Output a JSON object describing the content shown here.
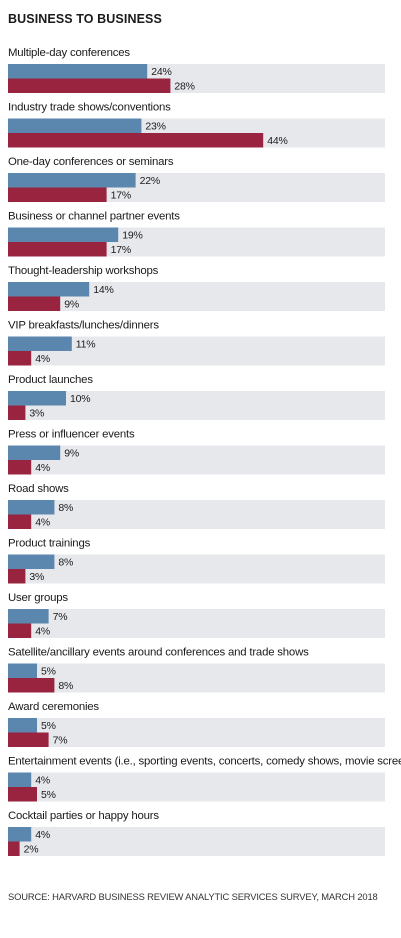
{
  "title": "BUSINESS TO BUSINESS",
  "source": "SOURCE: HARVARD BUSINESS REVIEW ANALYTIC SERVICES SURVEY, MARCH 2018",
  "colors": {
    "series1": "#5b86ad",
    "series2": "#98243f",
    "track": "#e6e8ec"
  },
  "chart_data": {
    "type": "bar",
    "orientation": "horizontal",
    "xlim": [
      0,
      50
    ],
    "categories": [
      "Multiple-day conferences",
      "Industry trade shows/conventions",
      "One-day conferences or seminars",
      "Business or channel partner events",
      "Thought-leadership workshops",
      "VIP breakfasts/lunches/dinners",
      "Product launches",
      "Press or influencer events",
      "Road shows",
      "Product trainings",
      "User groups",
      "Satellite/ancillary events around conferences and trade shows",
      "Award ceremonies",
      "Entertainment events (i.e., sporting events, concerts, comedy shows, movie screenings)",
      "Cocktail parties or happy hours"
    ],
    "series": [
      {
        "values": [
          24,
          23,
          22,
          19,
          14,
          11,
          10,
          9,
          8,
          8,
          7,
          5,
          5,
          4,
          4
        ],
        "labels": [
          "24%",
          "23%",
          "22%",
          "19%",
          "14%",
          "11%",
          "10%",
          "9%",
          "8%",
          "8%",
          "7%",
          "5%",
          "5%",
          "4%",
          "4%"
        ]
      },
      {
        "values": [
          28,
          44,
          17,
          17,
          9,
          4,
          3,
          4,
          4,
          3,
          4,
          8,
          7,
          5,
          2
        ],
        "labels": [
          "28%",
          "44%",
          "17%",
          "17%",
          "9%",
          "4%",
          "3%",
          "4%",
          "4%",
          "3%",
          "4%",
          "8%",
          "7%",
          "5%",
          "2%"
        ]
      }
    ]
  }
}
